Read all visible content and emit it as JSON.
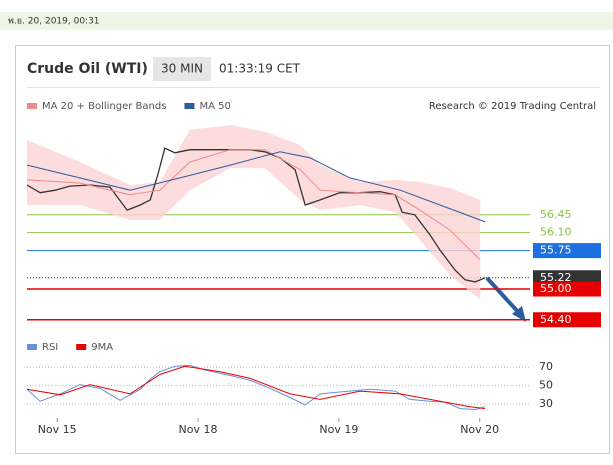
{
  "header": {
    "timestamp": "พ.ย. 20, 2019, 00:31",
    "title": "Crude Oil (WTI)",
    "timeframe": "30 MIN",
    "time": "01:33:19 CET"
  },
  "chart_data": [
    {
      "type": "line",
      "subtitle": "Research © 2019 Trading Central",
      "xlim": [
        0,
        100
      ],
      "ylim": [
        54.2,
        58.3
      ],
      "xticks": [
        {
          "value": 6,
          "label": "Nov 15"
        },
        {
          "value": 34,
          "label": "Nov 18"
        },
        {
          "value": 62,
          "label": "Nov 19"
        },
        {
          "value": 90,
          "label": "Nov 20"
        }
      ],
      "series": [
        {
          "color": "#333333",
          "x": [
            0,
            2.6,
            5.6,
            8.5,
            12.5,
            16.5,
            19.9,
            22.5,
            24.5,
            26.0,
            27.4,
            29.4,
            32.4,
            36.4,
            40.4,
            44.3,
            47.3,
            50.3,
            53.3,
            55.3,
            58.3,
            62.2,
            66.2,
            70.2,
            73.2,
            74.6,
            77.1,
            80.1,
            82.1,
            85.1,
            87.1,
            89.1,
            91.1
          ],
          "values": [
            57.03,
            56.88,
            56.93,
            57.01,
            57.03,
            56.99,
            56.54,
            56.64,
            56.74,
            57.23,
            57.75,
            57.66,
            57.72,
            57.72,
            57.72,
            57.72,
            57.68,
            57.56,
            57.33,
            56.64,
            56.74,
            56.88,
            56.88,
            56.9,
            56.84,
            56.5,
            56.45,
            56.06,
            55.76,
            55.37,
            55.18,
            55.14,
            55.22
          ]
        },
        {
          "name": "MA 20 + Bollinger Bands",
          "color": "#f08a8a",
          "band_color": "#fbd3d3",
          "x": [
            0,
            10.5,
            20.5,
            26.4,
            32.4,
            40.4,
            47.3,
            54.3,
            58.3,
            66.2,
            73.2,
            78.1,
            84.1,
            90.1
          ],
          "values": [
            57.13,
            57.07,
            56.84,
            56.93,
            57.48,
            57.72,
            57.72,
            57.33,
            56.93,
            56.88,
            56.84,
            56.54,
            56.15,
            55.57
          ],
          "upper": [
            57.91,
            57.48,
            57.03,
            57.09,
            58.11,
            58.2,
            58.07,
            57.81,
            57.42,
            57.09,
            57.13,
            57.09,
            56.97,
            56.74
          ],
          "lower": [
            56.64,
            56.64,
            56.35,
            56.35,
            56.93,
            57.36,
            57.36,
            56.74,
            56.54,
            56.64,
            56.5,
            55.96,
            55.27,
            54.79
          ]
        },
        {
          "name": "MA 50",
          "color": "#2c5d9e",
          "x": [
            0,
            10.5,
            20.5,
            30.4,
            40.4,
            50.3,
            56.3,
            64.2,
            74.2,
            82.1,
            91.1
          ],
          "values": [
            57.42,
            57.17,
            56.93,
            57.17,
            57.42,
            57.68,
            57.56,
            57.17,
            56.93,
            56.64,
            56.31
          ]
        }
      ],
      "levels": [
        {
          "value": 56.45,
          "color": "#8bc34a",
          "box": false
        },
        {
          "value": 56.1,
          "label": "56.10",
          "color": "#8bc34a",
          "box": false
        },
        {
          "value": 55.75,
          "color": "#1e6fe0",
          "box": true
        },
        {
          "value": 55.22,
          "color": "#333333",
          "box": true,
          "dotted": true
        },
        {
          "value": 55.0,
          "label": "55.00",
          "color": "#e60000",
          "box": true
        },
        {
          "value": 54.4,
          "label": "54.40",
          "color": "#e60000",
          "box": true
        }
      ]
    },
    {
      "type": "line",
      "xlim": [
        0,
        100
      ],
      "ylim": [
        18,
        80
      ],
      "yticks": [
        30,
        50,
        70
      ],
      "grid": true,
      "series": [
        {
          "name": "RSI",
          "color": "#6a8fd8",
          "x": [
            0,
            2.6,
            6.6,
            10.5,
            14.5,
            18.5,
            22.5,
            24.5,
            26.4,
            29.4,
            32.4,
            35.4,
            40.4,
            44.3,
            48.3,
            52.3,
            55.3,
            58.3,
            62.2,
            68.2,
            73.2,
            76.1,
            80.1,
            83.1,
            86.1,
            89.1,
            91.1
          ],
          "values": [
            46,
            33,
            41,
            51,
            47,
            34,
            46,
            57,
            65,
            71,
            72,
            67,
            61,
            56,
            47,
            37,
            29,
            41,
            43,
            46,
            44,
            35,
            33,
            32,
            25,
            24,
            27
          ]
        },
        {
          "name": "9MA",
          "color": "#e60000",
          "x": [
            0,
            6.6,
            12.5,
            20.5,
            26.4,
            31.4,
            38.4,
            44.3,
            52.3,
            58.3,
            66.2,
            74.2,
            82.1,
            88.1,
            91.1
          ],
          "values": [
            46,
            40,
            51,
            41,
            62,
            71,
            65,
            58,
            41,
            35,
            44,
            41,
            33,
            27,
            25
          ]
        }
      ]
    }
  ]
}
